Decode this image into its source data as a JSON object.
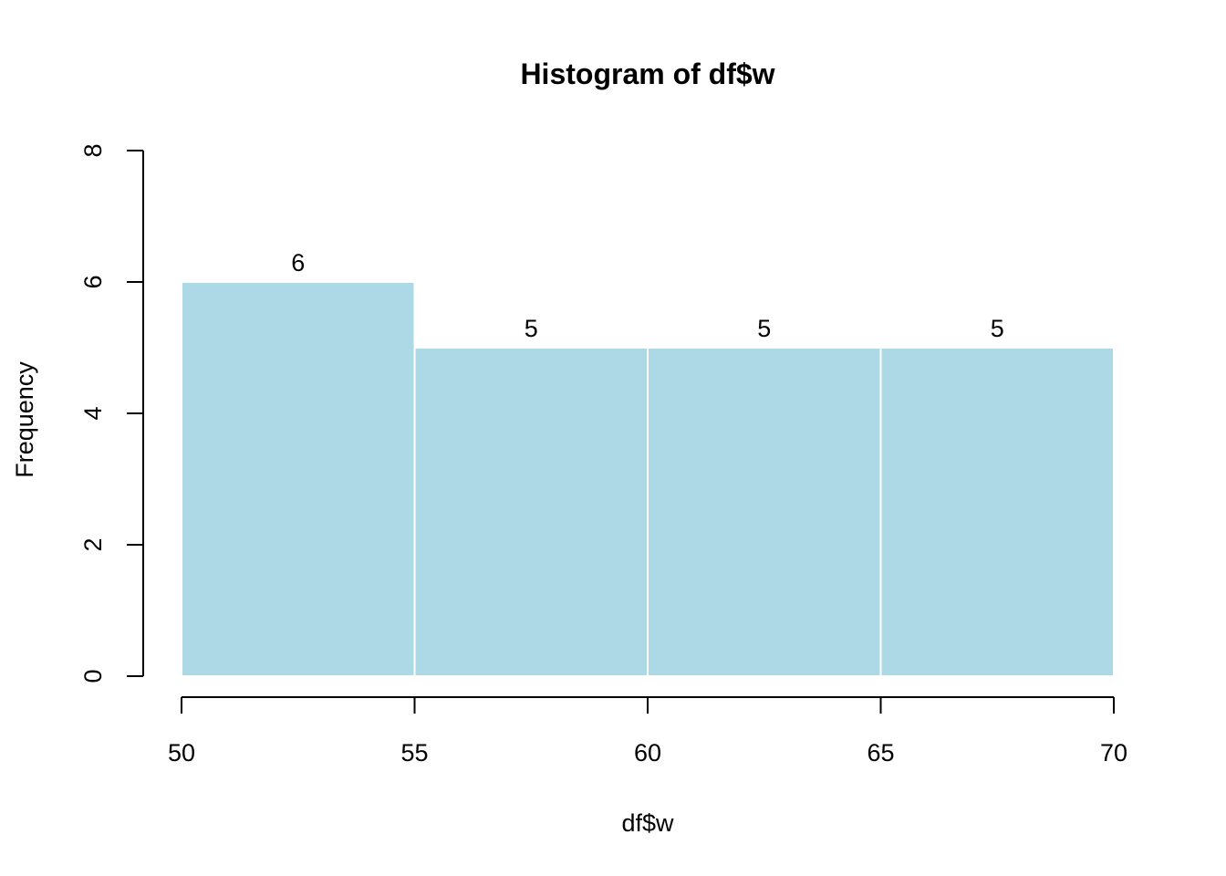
{
  "chart_data": {
    "type": "bar",
    "title": "Histogram of df$w",
    "xlabel": "df$w",
    "ylabel": "Frequency",
    "bins": [
      {
        "x0": 50,
        "x1": 55,
        "count": 6
      },
      {
        "x0": 55,
        "x1": 60,
        "count": 5
      },
      {
        "x0": 60,
        "x1": 65,
        "count": 5
      },
      {
        "x0": 65,
        "x1": 70,
        "count": 5
      }
    ],
    "xlim": [
      50,
      70
    ],
    "ylim": [
      0,
      8
    ],
    "x_ticks": [
      50,
      55,
      60,
      65,
      70
    ],
    "y_ticks": [
      0,
      2,
      4,
      6,
      8
    ],
    "bar_color": "#add8e6",
    "bar_border_color": "#ffffff",
    "show_bar_labels": true,
    "grid": false
  }
}
